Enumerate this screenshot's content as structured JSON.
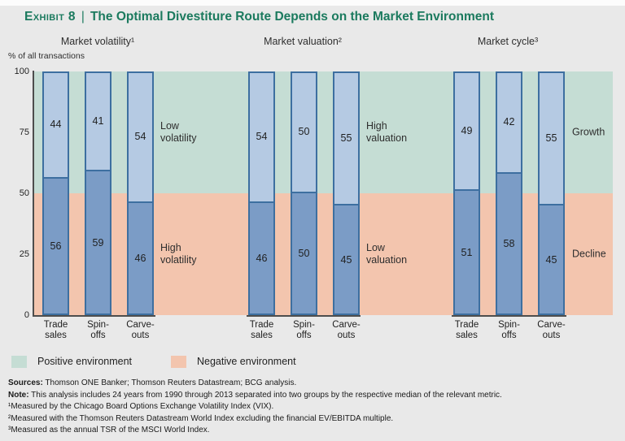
{
  "page": {
    "title_exhibit": "Exhibit 8",
    "title_separator": "|",
    "title_text": "The Optimal Divestiture Route Depends on the Market Environment"
  },
  "y_axis": {
    "label": "% of all transactions",
    "ticks": [
      100,
      75,
      50,
      25,
      0
    ]
  },
  "legend": {
    "positive": {
      "label": "Positive environment",
      "color": "#c5ddd4"
    },
    "negative": {
      "label": "Negative environment",
      "color": "#f3c5ae"
    }
  },
  "footer": {
    "sources_label": "Sources:",
    "sources_text": "Thomson ONE Banker; Thomson Reuters Datastream; BCG analysis.",
    "note_label": "Note:",
    "note_text": "This analysis includes 24 years from 1990 through 2013 separated into two groups by the respective median of the relevant metric.",
    "footnotes": [
      "¹Measured by the Chicago Board Options Exchange Volatility Index (VIX).",
      "²Measured with the Thomson Reuters Datastream World Index excluding the financial EV/EBITDA multiple.",
      "³Measured as the annual TSR of the MSCI World Index."
    ]
  },
  "chart_data": {
    "type": "bar",
    "stacked": true,
    "title": "The Optimal Divestiture Route Depends on the Market Environment",
    "ylabel": "% of all transactions",
    "ylim": [
      0,
      100
    ],
    "yticks": [
      0,
      25,
      50,
      75,
      100
    ],
    "grid": false,
    "categories": [
      "Trade sales",
      "Spin-offs",
      "Carve-outs"
    ],
    "category_display": [
      [
        "Trade",
        "sales"
      ],
      [
        "Spin-",
        "offs"
      ],
      [
        "Carve-",
        "outs"
      ]
    ],
    "segment_colors": {
      "positive": "#b5cae3",
      "negative": "#7b9cc6",
      "border": "#3d6fa0"
    },
    "environment_colors": {
      "positive": "#c5ddd4",
      "negative": "#f3c5ae"
    },
    "groups": [
      {
        "title": "Market volatility¹",
        "positive_label": "Low volatility",
        "negative_label": "High volatility",
        "series": [
          {
            "category": "Trade sales",
            "positive": 44,
            "negative": 56
          },
          {
            "category": "Spin-offs",
            "positive": 41,
            "negative": 59
          },
          {
            "category": "Carve-outs",
            "positive": 54,
            "negative": 46
          }
        ]
      },
      {
        "title": "Market valuation²",
        "positive_label": "High valuation",
        "negative_label": "Low valuation",
        "series": [
          {
            "category": "Trade sales",
            "positive": 54,
            "negative": 46
          },
          {
            "category": "Spin-offs",
            "positive": 50,
            "negative": 50
          },
          {
            "category": "Carve-outs",
            "positive": 55,
            "negative": 45
          }
        ]
      },
      {
        "title": "Market cycle³",
        "positive_label": "Growth",
        "negative_label": "Decline",
        "series": [
          {
            "category": "Trade sales",
            "positive": 49,
            "negative": 51
          },
          {
            "category": "Spin-offs",
            "positive": 42,
            "negative": 58
          },
          {
            "category": "Carve-outs",
            "positive": 55,
            "negative": 45
          }
        ]
      }
    ]
  }
}
